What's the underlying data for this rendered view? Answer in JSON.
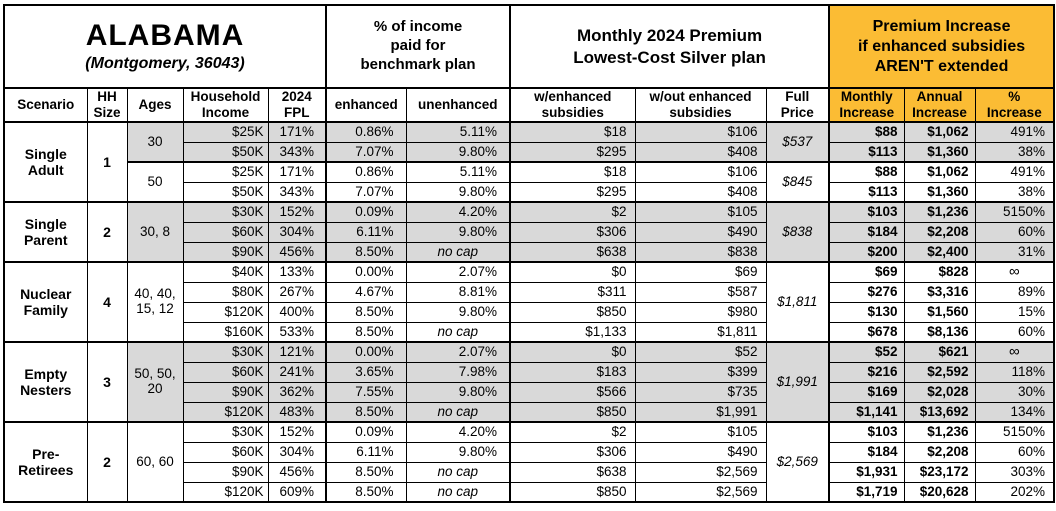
{
  "colors": {
    "accent_orange": "#FBBC34",
    "row_shading_gray": "#D9D9D9",
    "border_black": "#000000"
  },
  "chart_data": {
    "type": "table",
    "title": "ALABAMA",
    "subtitle": "(Montgomery, 36043)",
    "sections": {
      "pct_income": "% of income\npaid for\nbenchmark plan",
      "premium": "Monthly 2024 Premium\nLowest-Cost Silver plan",
      "increase": "Premium Increase\nif enhanced subsidies\nAREN'T extended"
    },
    "columns": [
      "Scenario",
      "HH\nSize",
      "Ages",
      "Household\nIncome",
      "2024\nFPL",
      "enhanced",
      "unenhanced",
      "w/enhanced\nsubsidies",
      "w/out enhanced\nsubsidies",
      "Full\nPrice",
      "Monthly\nIncrease",
      "Annual\nIncrease",
      "%\nIncrease"
    ],
    "groups": [
      {
        "scenario": "Single\nAdult",
        "hh_size": "1",
        "subgroups": [
          {
            "ages": "30",
            "shaded": true,
            "full_price": "$537",
            "rows": [
              {
                "income": "$25K",
                "fpl": "171%",
                "enhanced": "0.86%",
                "unenhanced": "5.11%",
                "w_enh": "$18",
                "wo_enh": "$106",
                "monthly": "$88",
                "annual": "$1,062",
                "pct": "491%"
              },
              {
                "income": "$50K",
                "fpl": "343%",
                "enhanced": "7.07%",
                "unenhanced": "9.80%",
                "w_enh": "$295",
                "wo_enh": "$408",
                "monthly": "$113",
                "annual": "$1,360",
                "pct": "38%"
              }
            ]
          },
          {
            "ages": "50",
            "shaded": false,
            "full_price": "$845",
            "rows": [
              {
                "income": "$25K",
                "fpl": "171%",
                "enhanced": "0.86%",
                "unenhanced": "5.11%",
                "w_enh": "$18",
                "wo_enh": "$106",
                "monthly": "$88",
                "annual": "$1,062",
                "pct": "491%"
              },
              {
                "income": "$50K",
                "fpl": "343%",
                "enhanced": "7.07%",
                "unenhanced": "9.80%",
                "w_enh": "$295",
                "wo_enh": "$408",
                "monthly": "$113",
                "annual": "$1,360",
                "pct": "38%"
              }
            ]
          }
        ]
      },
      {
        "scenario": "Single\nParent",
        "hh_size": "2",
        "subgroups": [
          {
            "ages": "30, 8",
            "shaded": true,
            "full_price": "$838",
            "rows": [
              {
                "income": "$30K",
                "fpl": "152%",
                "enhanced": "0.09%",
                "unenhanced": "4.20%",
                "w_enh": "$2",
                "wo_enh": "$105",
                "monthly": "$103",
                "annual": "$1,236",
                "pct": "5150%"
              },
              {
                "income": "$60K",
                "fpl": "304%",
                "enhanced": "6.11%",
                "unenhanced": "9.80%",
                "w_enh": "$306",
                "wo_enh": "$490",
                "monthly": "$184",
                "annual": "$2,208",
                "pct": "60%"
              },
              {
                "income": "$90K",
                "fpl": "456%",
                "enhanced": "8.50%",
                "unenhanced": "no cap",
                "w_enh": "$638",
                "wo_enh": "$838",
                "monthly": "$200",
                "annual": "$2,400",
                "pct": "31%"
              }
            ]
          }
        ]
      },
      {
        "scenario": "Nuclear\nFamily",
        "hh_size": "4",
        "subgroups": [
          {
            "ages": "40, 40, 15, 12",
            "shaded": false,
            "full_price": "$1,811",
            "rows": [
              {
                "income": "$40K",
                "fpl": "133%",
                "enhanced": "0.00%",
                "unenhanced": "2.07%",
                "w_enh": "$0",
                "wo_enh": "$69",
                "monthly": "$69",
                "annual": "$828",
                "pct": "∞"
              },
              {
                "income": "$80K",
                "fpl": "267%",
                "enhanced": "4.67%",
                "unenhanced": "8.81%",
                "w_enh": "$311",
                "wo_enh": "$587",
                "monthly": "$276",
                "annual": "$3,316",
                "pct": "89%"
              },
              {
                "income": "$120K",
                "fpl": "400%",
                "enhanced": "8.50%",
                "unenhanced": "9.80%",
                "w_enh": "$850",
                "wo_enh": "$980",
                "monthly": "$130",
                "annual": "$1,560",
                "pct": "15%"
              },
              {
                "income": "$160K",
                "fpl": "533%",
                "enhanced": "8.50%",
                "unenhanced": "no cap",
                "w_enh": "$1,133",
                "wo_enh": "$1,811",
                "monthly": "$678",
                "annual": "$8,136",
                "pct": "60%"
              }
            ]
          }
        ]
      },
      {
        "scenario": "Empty\nNesters",
        "hh_size": "3",
        "subgroups": [
          {
            "ages": "50, 50, 20",
            "shaded": true,
            "full_price": "$1,991",
            "rows": [
              {
                "income": "$30K",
                "fpl": "121%",
                "enhanced": "0.00%",
                "unenhanced": "2.07%",
                "w_enh": "$0",
                "wo_enh": "$52",
                "monthly": "$52",
                "annual": "$621",
                "pct": "∞"
              },
              {
                "income": "$60K",
                "fpl": "241%",
                "enhanced": "3.65%",
                "unenhanced": "7.98%",
                "w_enh": "$183",
                "wo_enh": "$399",
                "monthly": "$216",
                "annual": "$2,592",
                "pct": "118%"
              },
              {
                "income": "$90K",
                "fpl": "362%",
                "enhanced": "7.55%",
                "unenhanced": "9.80%",
                "w_enh": "$566",
                "wo_enh": "$735",
                "monthly": "$169",
                "annual": "$2,028",
                "pct": "30%"
              },
              {
                "income": "$120K",
                "fpl": "483%",
                "enhanced": "8.50%",
                "unenhanced": "no cap",
                "w_enh": "$850",
                "wo_enh": "$1,991",
                "monthly": "$1,141",
                "annual": "$13,692",
                "pct": "134%"
              }
            ]
          }
        ]
      },
      {
        "scenario": "Pre-\nRetirees",
        "hh_size": "2",
        "subgroups": [
          {
            "ages": "60, 60",
            "shaded": false,
            "full_price": "$2,569",
            "rows": [
              {
                "income": "$30K",
                "fpl": "152%",
                "enhanced": "0.09%",
                "unenhanced": "4.20%",
                "w_enh": "$2",
                "wo_enh": "$105",
                "monthly": "$103",
                "annual": "$1,236",
                "pct": "5150%"
              },
              {
                "income": "$60K",
                "fpl": "304%",
                "enhanced": "6.11%",
                "unenhanced": "9.80%",
                "w_enh": "$306",
                "wo_enh": "$490",
                "monthly": "$184",
                "annual": "$2,208",
                "pct": "60%"
              },
              {
                "income": "$90K",
                "fpl": "456%",
                "enhanced": "8.50%",
                "unenhanced": "no cap",
                "w_enh": "$638",
                "wo_enh": "$2,569",
                "monthly": "$1,931",
                "annual": "$23,172",
                "pct": "303%"
              },
              {
                "income": "$120K",
                "fpl": "609%",
                "enhanced": "8.50%",
                "unenhanced": "no cap",
                "w_enh": "$850",
                "wo_enh": "$2,569",
                "monthly": "$1,719",
                "annual": "$20,628",
                "pct": "202%"
              }
            ]
          }
        ]
      }
    ]
  }
}
